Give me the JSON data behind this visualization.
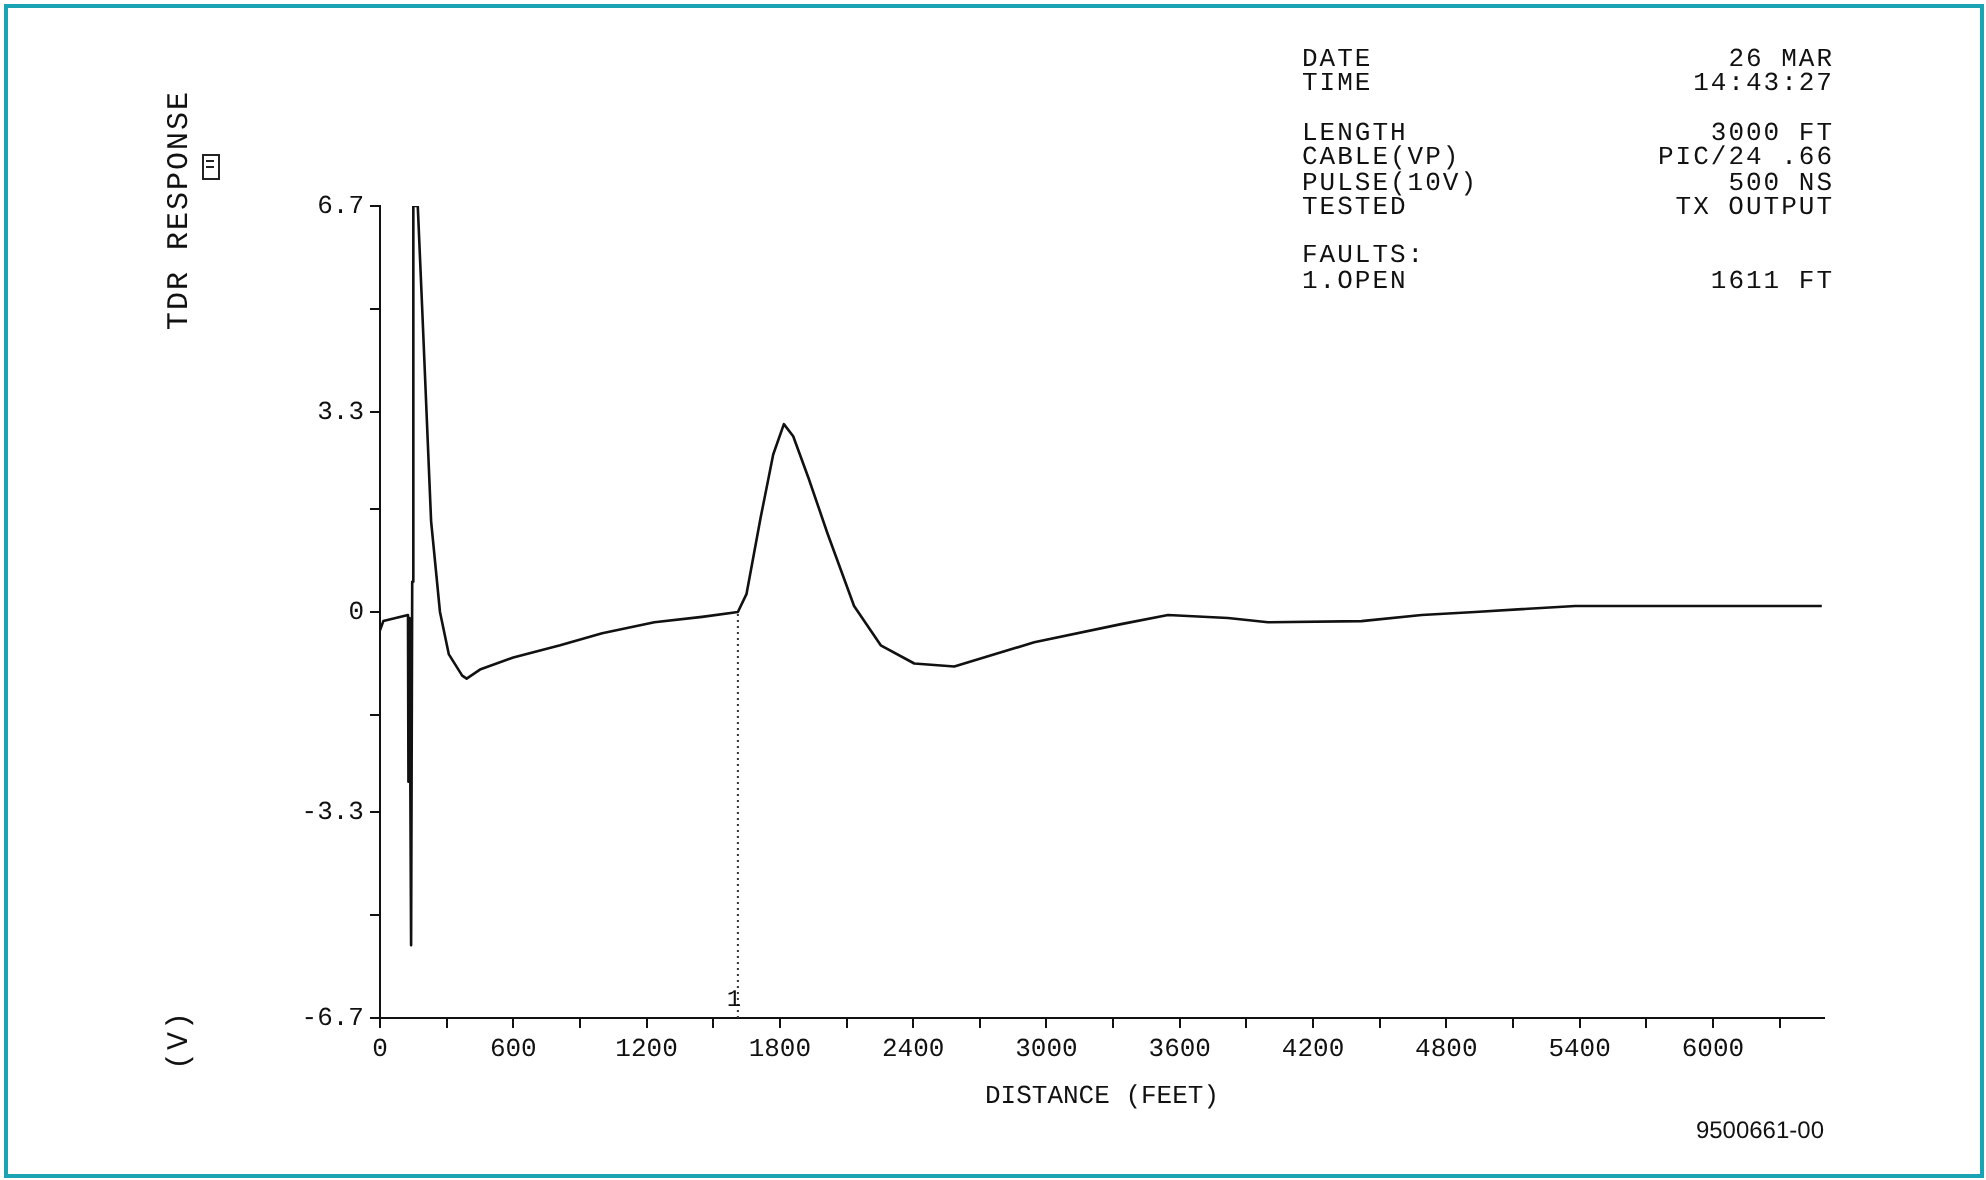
{
  "chart_data": {
    "type": "line",
    "ylabel": "TDR RESPONSE",
    "xlabel": "DISTANCE (FEET)",
    "annotations": [
      "DATE",
      "26 MAR",
      "TIME",
      "14:43:27",
      "LENGTH",
      "3000 FT",
      "CABLE(VP)",
      "PIC/24 .66",
      "PULSE(10V)",
      "500 NS",
      "TESTED",
      "TX OUTPUT",
      "FAULTS:",
      "1.OPEN",
      "1611 FT",
      "9500661-00",
      "(V)",
      {
        "text": "1",
        "x": 1611,
        "y": -6.7
      }
    ],
    "series": [
      {
        "color": "#111111",
        "x": [
          0,
          15,
          126,
          128,
          133,
          140,
          145,
          150,
          170,
          190,
          230,
          270,
          310,
          370,
          390,
          450,
          600,
          811,
          1000,
          1235,
          1450,
          1611,
          1650,
          1713,
          1770,
          1818,
          1860,
          1930,
          2014,
          2134,
          2254,
          2405,
          2585,
          2945,
          3336,
          3547,
          3817,
          3997,
          4418,
          4689,
          4929,
          5380,
          6490
        ],
        "values": [
          -0.3,
          -0.15,
          -0.05,
          -2.8,
          -0.1,
          -5.5,
          0.5,
          6.7,
          6.7,
          5.0,
          1.5,
          0,
          -0.7,
          -1.05,
          -1.1,
          -0.95,
          -0.75,
          -0.55,
          -0.35,
          -0.17,
          -0.08,
          0,
          0.3,
          1.55,
          2.6,
          3.1,
          2.9,
          2.2,
          1.3,
          0.1,
          -0.55,
          -0.85,
          -0.9,
          -0.5,
          -0.2,
          -0.05,
          -0.1,
          -0.17,
          -0.15,
          -0.05,
          0,
          0.1,
          0.1
        ]
      }
    ],
    "xlim": [
      0,
      6500
    ],
    "xticks": [
      0,
      {
        "value": 300,
        "label": null
      },
      600,
      {
        "value": 900,
        "label": null
      },
      1200,
      {
        "value": 1500,
        "label": null
      },
      1800,
      {
        "value": 2100,
        "label": null
      },
      2400,
      {
        "value": 2700,
        "label": null
      },
      3000,
      {
        "value": 3300,
        "label": null
      },
      3600,
      {
        "value": 3900,
        "label": null
      },
      4200,
      {
        "value": 4500,
        "label": null
      },
      4800,
      {
        "value": 5100,
        "label": null
      },
      5400,
      {
        "value": 5700,
        "label": null
      },
      6000,
      {
        "value": 6300,
        "label": null
      }
    ],
    "ylim": [
      -6.7,
      6.7
    ],
    "yticks": [
      -6.7,
      {
        "value": -5,
        "label": null
      },
      -3.3,
      {
        "value": -1.7,
        "label": null
      },
      0,
      {
        "value": 1.7,
        "label": null
      },
      3.3,
      {
        "value": 5,
        "label": null
      },
      6.7
    ],
    "ref_lines": [
      {
        "axis": "x",
        "value": 1611,
        "line_style": "dotted",
        "color": "#333333"
      }
    ],
    "grid": false,
    "legend": false,
    "marker": "none",
    "line_style": "solid"
  }
}
